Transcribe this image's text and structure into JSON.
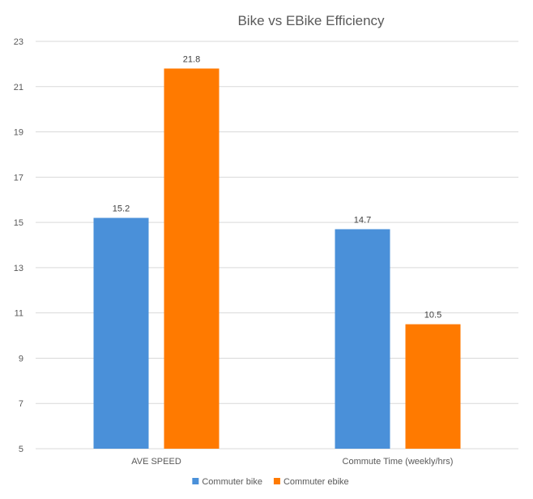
{
  "chart_data": {
    "type": "bar",
    "title": "Bike vs EBike Efficiency",
    "categories": [
      "AVE SPEED",
      "Commute Time (weekly/hrs)"
    ],
    "series": [
      {
        "name": "Commuter bike",
        "color": "#4a90d9",
        "values": [
          15.2,
          14.7
        ]
      },
      {
        "name": "Commuter ebike",
        "color": "#ff7a00",
        "values": [
          21.8,
          10.5
        ]
      }
    ],
    "ylim": [
      5,
      23
    ],
    "yticks": [
      5,
      7,
      9,
      11,
      13,
      15,
      17,
      19,
      21,
      23
    ],
    "grid": true,
    "legend": "bottom"
  }
}
